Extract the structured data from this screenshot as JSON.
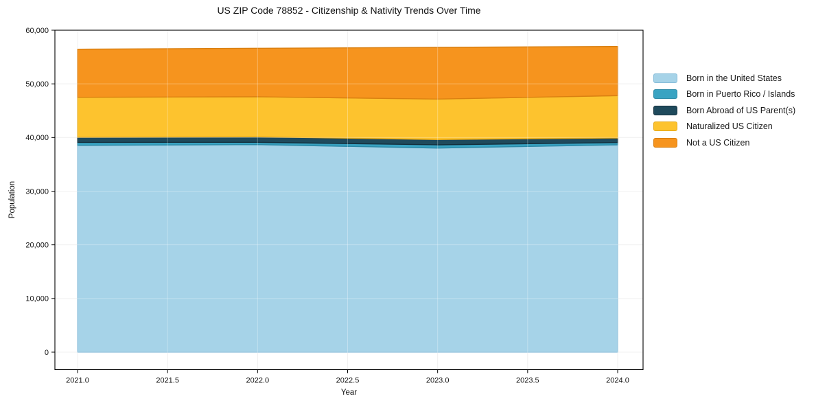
{
  "chart_data": {
    "type": "area",
    "stacked": true,
    "title": "US ZIP Code 78852 - Citizenship & Nativity Trends Over Time",
    "xlabel": "Year",
    "ylabel": "Population",
    "x": [
      2021,
      2022,
      2023,
      2024
    ],
    "series": [
      {
        "name": "Born in the United States",
        "color": "#a6d3e8",
        "edge": "#85bcd9",
        "values": [
          38550,
          38680,
          38040,
          38640
        ]
      },
      {
        "name": "Born in Puerto Rico / Islands",
        "color": "#39a3c2",
        "edge": "#2b89a6",
        "values": [
          550,
          430,
          600,
          420
        ]
      },
      {
        "name": "Born Abroad of US Parent(s)",
        "color": "#1f4a5c",
        "edge": "#142f3c",
        "values": [
          950,
          1020,
          980,
          860
        ]
      },
      {
        "name": "Naturalized US Citizen",
        "color": "#fdc32e",
        "edge": "#e5a918",
        "values": [
          7450,
          7460,
          7550,
          7890
        ]
      },
      {
        "name": "Not a US Citizen",
        "color": "#f6941e",
        "edge": "#d97f10",
        "values": [
          8950,
          9050,
          9630,
          9160
        ]
      }
    ],
    "xlim": [
      2020.9,
      2024.14
    ],
    "ylim": [
      0,
      60000
    ],
    "xticks": {
      "values": [
        2021.0,
        2021.5,
        2022.0,
        2022.5,
        2023.0,
        2023.5,
        2024.0
      ],
      "labels": [
        "2021.0",
        "2021.5",
        "2022.0",
        "2022.5",
        "2023.0",
        "2023.5",
        "2024.0"
      ]
    },
    "yticks": {
      "values": [
        0,
        10000,
        20000,
        30000,
        40000,
        50000,
        60000
      ],
      "labels": [
        "0",
        "10,000",
        "20,000",
        "30,000",
        "40,000",
        "50,000",
        "60,000"
      ]
    },
    "grid": true,
    "legend_position": "right of plot, no frame"
  }
}
